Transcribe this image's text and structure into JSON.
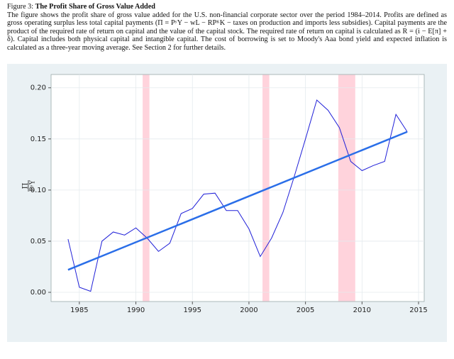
{
  "caption": {
    "label": "Figure 3:",
    "title": "The Profit Share of Gross Value Added",
    "text": "The figure shows the profit share of gross value added for the U.S. non-financial corporate sector over the period 1984–2014. Profits are defined as gross operating surplus less total capital payments (Π = PʸY − wL − RPᴷK − taxes on production and imports less subsidies). Capital payments are the product of the required rate of return on capital and the value of the capital stock. The required rate of return on capital is calculated as R = (i − E[π] + δ). Capital includes both physical capital and intangible capital. The cost of borrowing is set to Moody's Aaa bond yield and expected inflation is calculated as a three-year moving average. See Section 2 for further details."
  },
  "chart_data": {
    "type": "line",
    "ylabel_numerator": "Π",
    "ylabel_denominator": "PʸY",
    "xlim": [
      1982.5,
      2015.5
    ],
    "ylim": [
      -0.009,
      0.213
    ],
    "xticks": [
      1985,
      1990,
      1995,
      2000,
      2005,
      2010,
      2015
    ],
    "yticks": [
      {
        "value": 0,
        "label": "0.00"
      },
      {
        "value": 0.05,
        "label": "0.05"
      },
      {
        "value": 0.1,
        "label": "0.10"
      },
      {
        "value": 0.15,
        "label": "0.15"
      },
      {
        "value": 0.2,
        "label": "0.20"
      }
    ],
    "grid": true,
    "shaded_regions": [
      [
        1990.6,
        1991.2
      ],
      [
        2001.2,
        2001.8
      ],
      [
        2007.9,
        2009.4
      ]
    ],
    "shade_color": "#ffd3dc",
    "series": [
      {
        "color": "#2020d8",
        "width": 1,
        "x": [
          1984,
          1985,
          1986,
          1987,
          1988,
          1989,
          1990,
          1991,
          1992,
          1993,
          1994,
          1995,
          1996,
          1997,
          1998,
          1999,
          2000,
          2001,
          2002,
          2003,
          2004,
          2005,
          2006,
          2007,
          2008,
          2009,
          2010,
          2011,
          2012,
          2013,
          2014
        ],
        "values": [
          0.052,
          0.005,
          0.001,
          0.05,
          0.059,
          0.056,
          0.063,
          0.053,
          0.04,
          0.048,
          0.077,
          0.082,
          0.096,
          0.097,
          0.08,
          0.08,
          0.062,
          0.035,
          0.053,
          0.078,
          0.113,
          0.15,
          0.188,
          0.178,
          0.161,
          0.128,
          0.119,
          0.124,
          0.128,
          0.174,
          0.157
        ]
      },
      {
        "color": "#2a6ee8",
        "width": 2.5,
        "x": [
          1984,
          2014
        ],
        "values": [
          0.022,
          0.157
        ]
      }
    ]
  }
}
